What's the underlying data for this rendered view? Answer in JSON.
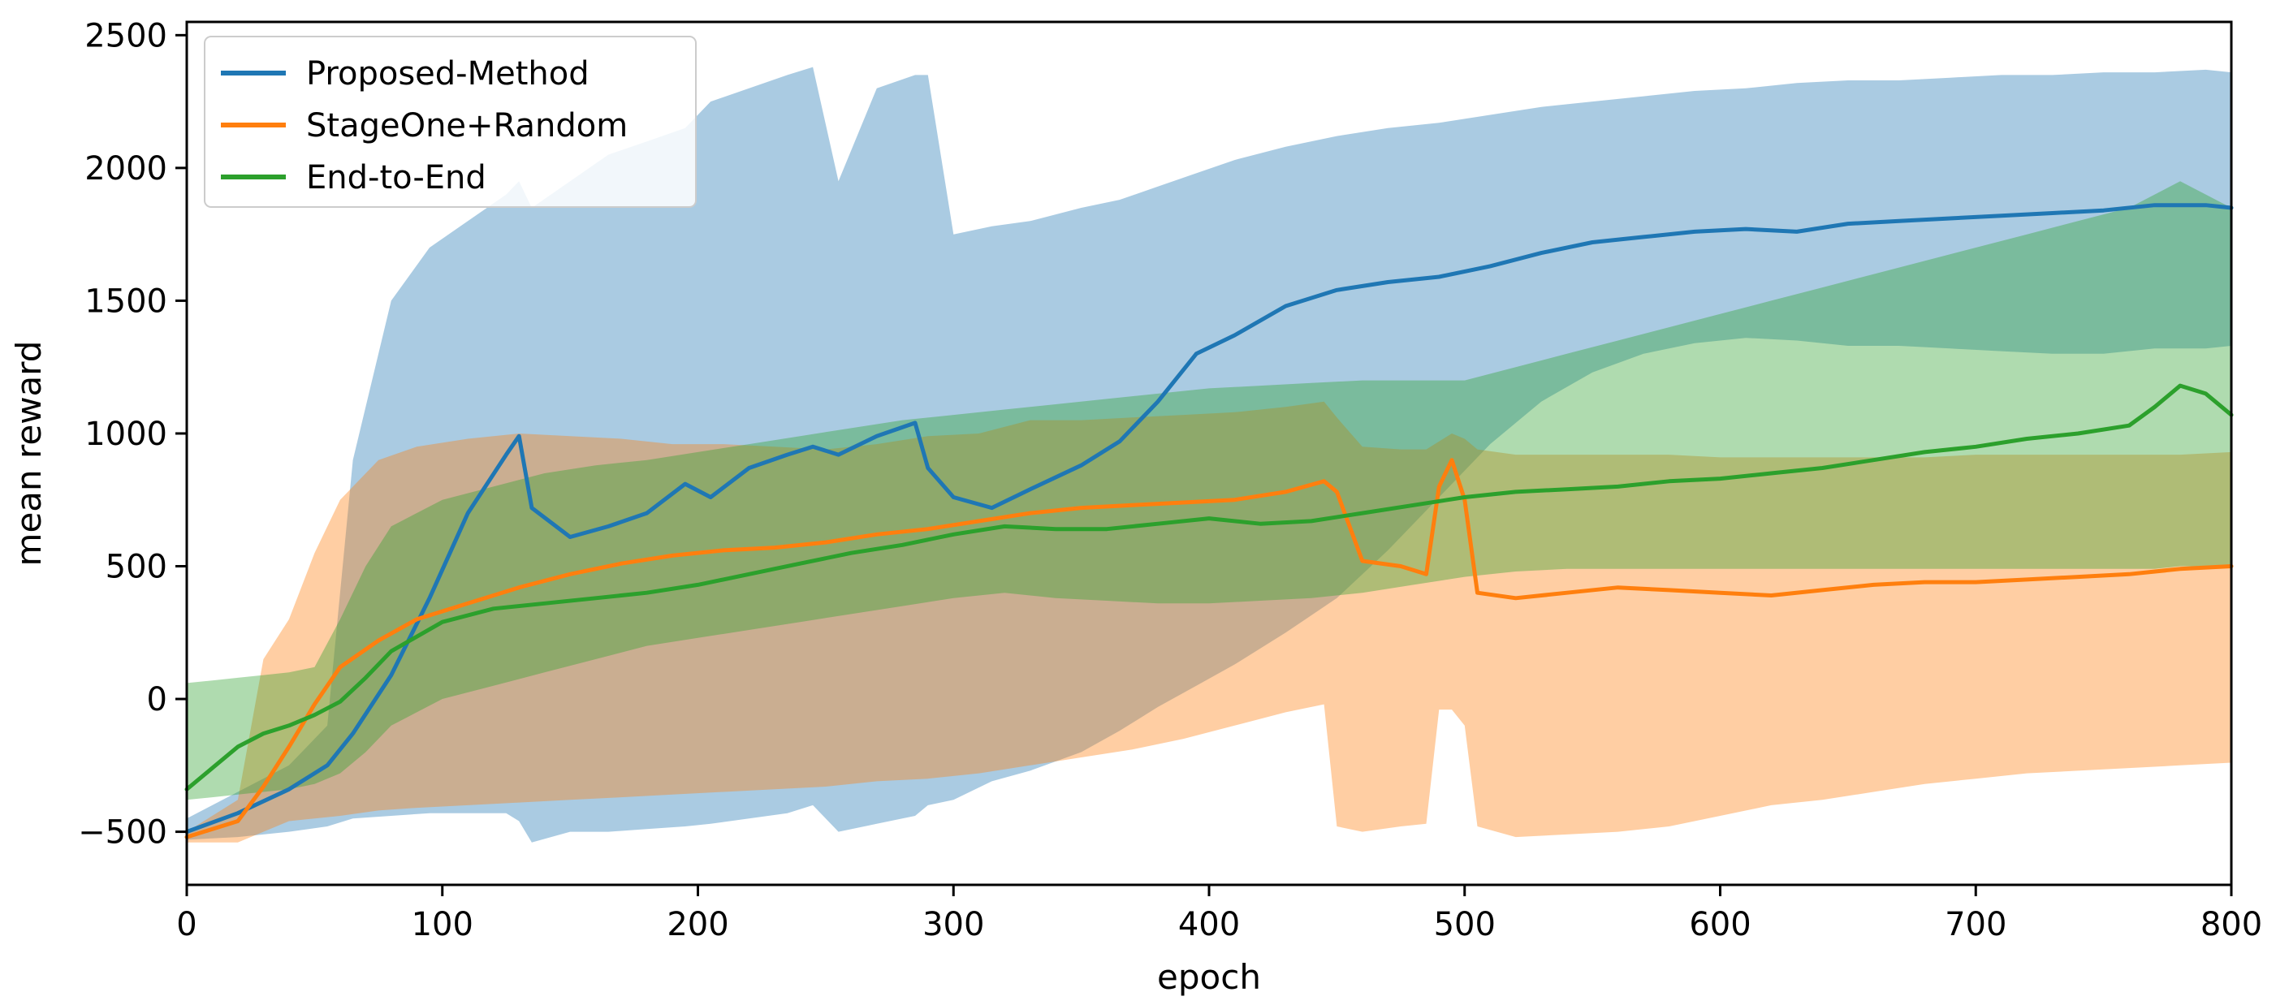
{
  "chart_data": {
    "type": "line",
    "title": "",
    "xlabel": "epoch",
    "ylabel": "mean reward",
    "xlim": [
      0,
      800
    ],
    "ylim": [
      -700,
      2550
    ],
    "xticks": [
      0,
      100,
      200,
      300,
      400,
      500,
      600,
      700,
      800
    ],
    "yticks": [
      -500,
      0,
      500,
      1000,
      1500,
      2000,
      2500
    ],
    "xtick_labels": [
      "0",
      "100",
      "200",
      "300",
      "400",
      "500",
      "600",
      "700",
      "800"
    ],
    "ytick_labels": [
      "−500",
      "0",
      "500",
      "1000",
      "1500",
      "2000",
      "2500"
    ],
    "grid": false,
    "legend_position": "top-left",
    "series": [
      {
        "name": "Proposed-Method",
        "color": "#1f77b4",
        "x": [
          0,
          20,
          40,
          55,
          65,
          80,
          95,
          110,
          125,
          130,
          135,
          150,
          165,
          180,
          195,
          205,
          220,
          235,
          245,
          255,
          270,
          285,
          290,
          300,
          315,
          330,
          350,
          365,
          380,
          395,
          410,
          430,
          450,
          470,
          490,
          510,
          530,
          550,
          570,
          590,
          610,
          630,
          650,
          670,
          690,
          710,
          730,
          750,
          770,
          790,
          800
        ],
        "values": [
          -500,
          -430,
          -340,
          -250,
          -130,
          90,
          380,
          700,
          920,
          990,
          720,
          610,
          650,
          700,
          810,
          760,
          870,
          920,
          950,
          920,
          990,
          1040,
          870,
          760,
          720,
          790,
          880,
          970,
          1120,
          1300,
          1370,
          1480,
          1540,
          1570,
          1590,
          1630,
          1680,
          1720,
          1740,
          1760,
          1770,
          1760,
          1790,
          1800,
          1810,
          1820,
          1830,
          1840,
          1860,
          1860,
          1850
        ],
        "band_x": [
          0,
          20,
          40,
          55,
          65,
          80,
          95,
          110,
          125,
          130,
          135,
          150,
          165,
          180,
          195,
          205,
          220,
          235,
          245,
          255,
          270,
          285,
          290,
          300,
          315,
          330,
          350,
          365,
          380,
          395,
          410,
          430,
          450,
          470,
          490,
          510,
          530,
          550,
          570,
          590,
          610,
          630,
          650,
          670,
          690,
          710,
          730,
          750,
          770,
          790,
          800
        ],
        "upper": [
          -450,
          -350,
          -250,
          -100,
          900,
          1500,
          1700,
          1800,
          1900,
          1950,
          1850,
          1950,
          2050,
          2100,
          2150,
          2250,
          2300,
          2350,
          2380,
          1950,
          2300,
          2350,
          2350,
          1750,
          1780,
          1800,
          1850,
          1880,
          1930,
          1980,
          2030,
          2080,
          2120,
          2150,
          2170,
          2200,
          2230,
          2250,
          2270,
          2290,
          2300,
          2320,
          2330,
          2330,
          2340,
          2350,
          2350,
          2360,
          2360,
          2370,
          2360
        ],
        "lower": [
          -530,
          -520,
          -500,
          -480,
          -450,
          -440,
          -430,
          -430,
          -430,
          -460,
          -540,
          -500,
          -500,
          -490,
          -480,
          -470,
          -450,
          -430,
          -400,
          -500,
          -470,
          -440,
          -400,
          -380,
          -310,
          -270,
          -200,
          -120,
          -30,
          50,
          130,
          250,
          380,
          560,
          760,
          960,
          1120,
          1230,
          1300,
          1340,
          1360,
          1350,
          1330,
          1330,
          1320,
          1310,
          1300,
          1300,
          1320,
          1320,
          1330
        ]
      },
      {
        "name": "StageOne+Random",
        "color": "#ff7f0e",
        "x": [
          0,
          20,
          30,
          40,
          50,
          60,
          75,
          90,
          110,
          130,
          150,
          170,
          190,
          210,
          230,
          250,
          270,
          290,
          310,
          330,
          350,
          370,
          390,
          410,
          430,
          445,
          450,
          460,
          475,
          485,
          490,
          495,
          500,
          505,
          520,
          540,
          560,
          580,
          600,
          620,
          640,
          660,
          680,
          700,
          720,
          740,
          760,
          780,
          800
        ],
        "values": [
          -520,
          -460,
          -330,
          -180,
          -20,
          120,
          220,
          300,
          360,
          420,
          470,
          510,
          540,
          560,
          570,
          590,
          620,
          640,
          670,
          700,
          720,
          730,
          740,
          750,
          780,
          820,
          780,
          520,
          500,
          470,
          800,
          900,
          750,
          400,
          380,
          400,
          420,
          410,
          400,
          390,
          410,
          430,
          440,
          440,
          450,
          460,
          470,
          490,
          500
        ],
        "band_x": [
          0,
          20,
          30,
          40,
          50,
          60,
          75,
          90,
          110,
          130,
          150,
          170,
          190,
          210,
          230,
          250,
          270,
          290,
          310,
          330,
          350,
          370,
          390,
          410,
          430,
          445,
          450,
          460,
          475,
          485,
          490,
          495,
          500,
          505,
          520,
          540,
          560,
          580,
          600,
          620,
          640,
          660,
          680,
          700,
          720,
          740,
          760,
          780,
          800
        ],
        "upper": [
          -500,
          -380,
          150,
          300,
          550,
          750,
          900,
          950,
          980,
          1000,
          990,
          980,
          960,
          960,
          950,
          940,
          960,
          990,
          1000,
          1050,
          1050,
          1060,
          1070,
          1080,
          1100,
          1120,
          1060,
          950,
          940,
          940,
          970,
          1000,
          980,
          940,
          920,
          920,
          920,
          920,
          910,
          910,
          910,
          910,
          910,
          920,
          920,
          920,
          920,
          920,
          930
        ],
        "lower": [
          -540,
          -540,
          -500,
          -460,
          -450,
          -440,
          -420,
          -410,
          -400,
          -390,
          -380,
          -370,
          -360,
          -350,
          -340,
          -330,
          -310,
          -300,
          -280,
          -250,
          -220,
          -190,
          -150,
          -100,
          -50,
          -20,
          -480,
          -500,
          -480,
          -470,
          -40,
          -40,
          -100,
          -480,
          -520,
          -510,
          -500,
          -480,
          -440,
          -400,
          -380,
          -350,
          -320,
          -300,
          -280,
          -270,
          -260,
          -250,
          -240
        ]
      },
      {
        "name": "End-to-End",
        "color": "#2ca02c",
        "x": [
          0,
          10,
          20,
          30,
          40,
          50,
          60,
          70,
          80,
          100,
          120,
          140,
          160,
          180,
          200,
          220,
          240,
          260,
          280,
          300,
          320,
          340,
          360,
          380,
          400,
          420,
          440,
          460,
          480,
          500,
          520,
          540,
          560,
          580,
          600,
          620,
          640,
          660,
          680,
          700,
          720,
          740,
          760,
          770,
          780,
          790,
          800
        ],
        "values": [
          -340,
          -260,
          -180,
          -130,
          -100,
          -60,
          -10,
          80,
          180,
          290,
          340,
          360,
          380,
          400,
          430,
          470,
          510,
          550,
          580,
          620,
          650,
          640,
          640,
          660,
          680,
          660,
          670,
          700,
          730,
          760,
          780,
          790,
          800,
          820,
          830,
          850,
          870,
          900,
          930,
          950,
          980,
          1000,
          1030,
          1100,
          1180,
          1150,
          1070
        ],
        "band_x": [
          0,
          10,
          20,
          30,
          40,
          50,
          60,
          70,
          80,
          100,
          120,
          140,
          160,
          180,
          200,
          220,
          240,
          260,
          280,
          300,
          320,
          340,
          360,
          380,
          400,
          420,
          440,
          460,
          480,
          500,
          520,
          540,
          560,
          580,
          600,
          620,
          640,
          660,
          680,
          700,
          720,
          740,
          760,
          770,
          780,
          790,
          800
        ],
        "upper": [
          60,
          70,
          80,
          90,
          100,
          120,
          300,
          500,
          650,
          750,
          800,
          850,
          880,
          900,
          930,
          960,
          990,
          1020,
          1050,
          1070,
          1090,
          1110,
          1130,
          1150,
          1170,
          1180,
          1190,
          1200,
          1200,
          1200,
          1250,
          1300,
          1350,
          1400,
          1450,
          1500,
          1550,
          1600,
          1650,
          1700,
          1750,
          1800,
          1850,
          1900,
          1950,
          1900,
          1850
        ],
        "lower": [
          -380,
          -370,
          -360,
          -350,
          -340,
          -320,
          -280,
          -200,
          -100,
          0,
          50,
          100,
          150,
          200,
          230,
          260,
          290,
          320,
          350,
          380,
          400,
          380,
          370,
          360,
          360,
          370,
          380,
          400,
          430,
          460,
          480,
          490,
          490,
          490,
          490,
          490,
          490,
          490,
          490,
          490,
          490,
          490,
          490,
          490,
          500,
          500,
          500
        ]
      }
    ]
  }
}
